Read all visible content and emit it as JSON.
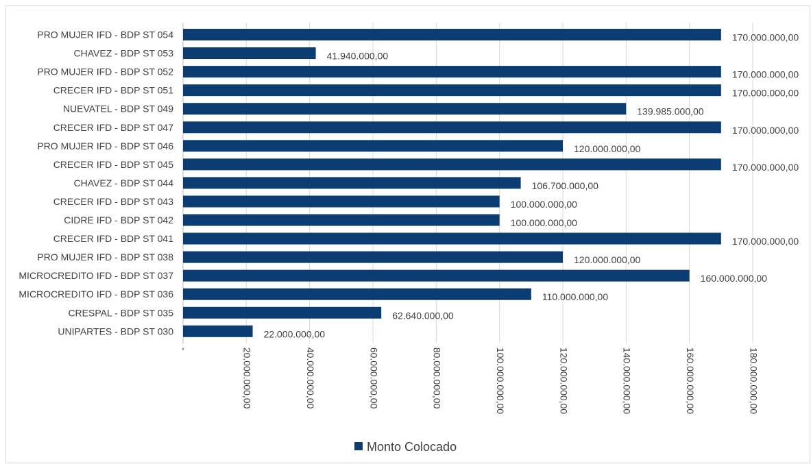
{
  "chart_data": {
    "type": "bar",
    "orientation": "horizontal",
    "categories": [
      "PRO MUJER IFD - BDP ST 054",
      "CHAVEZ - BDP ST 053",
      "PRO MUJER IFD - BDP ST 052",
      "CRECER IFD - BDP ST 051",
      "NUEVATEL - BDP ST 049",
      "CRECER IFD - BDP ST 047",
      "PRO MUJER IFD - BDP ST 046",
      "CRECER IFD - BDP ST 045",
      "CHAVEZ - BDP ST 044",
      "CRECER IFD - BDP ST 043",
      "CIDRE IFD - BDP ST 042",
      "CRECER IFD - BDP ST 041",
      "PRO MUJER IFD - BDP ST 038",
      "MICROCREDITO IFD - BDP ST 037",
      "MICROCREDITO IFD - BDP ST 036",
      "CRESPAL - BDP ST 035",
      "UNIPARTES - BDP ST 030"
    ],
    "series": [
      {
        "name": "Monto Colocado",
        "color": "#0b3d73",
        "values": [
          170000000,
          41940000,
          170000000,
          170000000,
          139985000,
          170000000,
          120000000,
          170000000,
          106700000,
          100000000,
          100000000,
          170000000,
          120000000,
          160000000,
          110000000,
          62640000,
          22000000
        ],
        "labels": [
          "170.000.000,00",
          "41.940.000,00",
          "170.000.000,00",
          "170.000.000,00",
          "139.985.000,00",
          "170.000.000,00",
          "120.000.000,00",
          "170.000.000,00",
          "106.700.000,00",
          "100.000.000,00",
          "100.000.000,00",
          "170.000.000,00",
          "120.000.000,00",
          "160.000.000,00",
          "110.000.000,00",
          "62.640.000,00",
          "22.000.000,00"
        ]
      }
    ],
    "xlim": [
      0,
      180000000
    ],
    "ticks": [
      0,
      20000000,
      40000000,
      60000000,
      80000000,
      100000000,
      120000000,
      140000000,
      160000000,
      180000000
    ],
    "tick_labels": [
      "-",
      "20.000.000,00",
      "40.000.000,00",
      "60.000.000,00",
      "80.000.000,00",
      "100.000.000,00",
      "120.000.000,00",
      "140.000.000,00",
      "160.000.000,00",
      "180.000.000,00"
    ],
    "grid": true,
    "legend_position": "bottom",
    "title": "",
    "xlabel": "",
    "ylabel": ""
  }
}
